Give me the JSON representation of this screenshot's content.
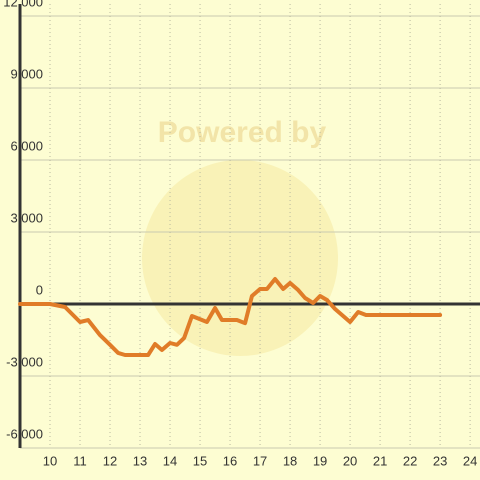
{
  "chart_data": {
    "type": "line",
    "watermark": "Powered by",
    "x": [
      9,
      10,
      10.5,
      11,
      11.27,
      11.67,
      12,
      12.27,
      12.5,
      13.27,
      13.5,
      13.73,
      14,
      14.23,
      14.47,
      14.73,
      15.23,
      15.5,
      15.73,
      16.23,
      16.5,
      16.73,
      17,
      17.23,
      17.5,
      17.77,
      18,
      18.27,
      18.5,
      18.77,
      19,
      19.23,
      19.5,
      20,
      20.27,
      20.53,
      23
    ],
    "series": [
      {
        "color": "#e07c28",
        "values": [
          0,
          0,
          -125,
          -750,
          -667,
          -1300,
          -1700,
          -2040,
          -2125,
          -2125,
          -1667,
          -1917,
          -1625,
          -1700,
          -1417,
          -500,
          -750,
          -167,
          -667,
          -667,
          -800,
          333,
          625,
          625,
          1042,
          625,
          875,
          583,
          250,
          42,
          333,
          167,
          -208,
          -750,
          -333,
          -458,
          -458
        ]
      }
    ],
    "xlim": [
      9,
      24.33
    ],
    "ylim": [
      -6500,
      12500
    ],
    "xticks": [
      10,
      11,
      12,
      13,
      14,
      15,
      16,
      17,
      18,
      19,
      20,
      21,
      22,
      23,
      24
    ],
    "yticks": [
      {
        "value": -6000,
        "label": "-6,000"
      },
      {
        "value": -3000,
        "label": "-3,000"
      },
      0,
      {
        "value": 3000,
        "label": "3,000"
      },
      {
        "value": 6000,
        "label": "6,000"
      },
      {
        "value": 9000,
        "label": "9,000"
      },
      {
        "value": 12000,
        "label": "12,000"
      }
    ],
    "grid": true
  }
}
